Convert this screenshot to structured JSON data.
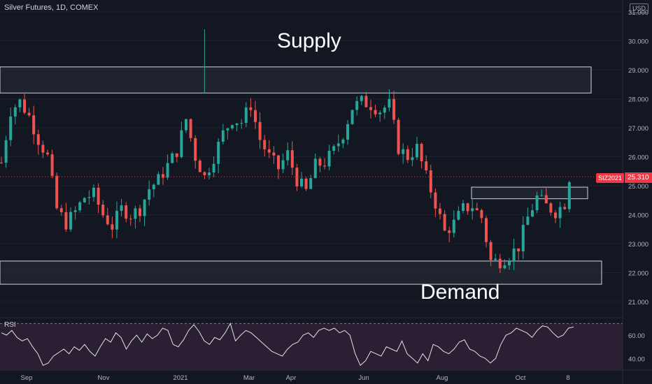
{
  "header": {
    "title": "Silver Futures, 1D, COMEX",
    "currency": "USD"
  },
  "badge": {
    "symbol": "SIZ2021",
    "price": "25.310"
  },
  "annotations": {
    "supply": "Supply",
    "demand": "Demand"
  },
  "colors": {
    "background": "#131722",
    "up": "#26a69a",
    "down": "#ef5350",
    "zone_fill": "#2a2e39",
    "zone_border": "#d1d4dc",
    "rsi_line": "#e0e3eb",
    "rsi_band": "#2a1f33",
    "price_badge": "#f23645"
  },
  "chart_data": [
    {
      "type": "candlestick",
      "title": "Silver Futures, 1D, COMEX",
      "xlabel": "",
      "ylabel": "USD",
      "ylim": [
        20.5,
        31.5
      ],
      "y_ticks": [
        "21.000",
        "22.000",
        "23.000",
        "24.000",
        "25.000",
        "26.000",
        "27.000",
        "28.000",
        "29.000",
        "30.000",
        "31.000"
      ],
      "x_ticks": [
        "Sep",
        "Nov",
        "2021",
        "Mar",
        "Apr",
        "Jun",
        "Aug",
        "Oct",
        "8"
      ],
      "last_price": 25.31,
      "close_path": [
        [
          0,
          25.8
        ],
        [
          2,
          27.6
        ],
        [
          4,
          27.9
        ],
        [
          6,
          27.4
        ],
        [
          8,
          26.6
        ],
        [
          10,
          26.0
        ],
        [
          12,
          24.2
        ],
        [
          14,
          23.7
        ],
        [
          16,
          24.1
        ],
        [
          18,
          24.6
        ],
        [
          20,
          24.7
        ],
        [
          22,
          24.0
        ],
        [
          24,
          23.6
        ],
        [
          26,
          24.2
        ],
        [
          28,
          24.0
        ],
        [
          30,
          24.2
        ],
        [
          32,
          24.9
        ],
        [
          34,
          25.2
        ],
        [
          36,
          25.7
        ],
        [
          38,
          26.2
        ],
        [
          40,
          27.3
        ],
        [
          42,
          26.0
        ],
        [
          44,
          25.3
        ],
        [
          46,
          26.0
        ],
        [
          48,
          26.8
        ],
        [
          50,
          27.3
        ],
        [
          52,
          27.2
        ],
        [
          54,
          27.8
        ],
        [
          56,
          26.6
        ],
        [
          58,
          26.0
        ],
        [
          60,
          25.6
        ],
        [
          62,
          26.1
        ],
        [
          64,
          25.2
        ],
        [
          66,
          24.8
        ],
        [
          68,
          25.7
        ],
        [
          70,
          25.8
        ],
        [
          72,
          26.2
        ],
        [
          74,
          26.8
        ],
        [
          76,
          27.7
        ],
        [
          78,
          27.9
        ],
        [
          80,
          27.8
        ],
        [
          82,
          27.6
        ],
        [
          84,
          27.8
        ],
        [
          86,
          26.3
        ],
        [
          88,
          26.0
        ],
        [
          90,
          26.3
        ],
        [
          92,
          25.3
        ],
        [
          94,
          24.4
        ],
        [
          96,
          23.4
        ],
        [
          98,
          23.7
        ],
        [
          100,
          24.2
        ],
        [
          102,
          24.3
        ],
        [
          104,
          23.9
        ],
        [
          106,
          22.4
        ],
        [
          108,
          22.4
        ],
        [
          110,
          22.6
        ],
        [
          112,
          22.9
        ],
        [
          114,
          23.9
        ],
        [
          116,
          24.6
        ],
        [
          118,
          24.3
        ],
        [
          120,
          24.1
        ],
        [
          122,
          24.4
        ],
        [
          123,
          25.3
        ]
      ],
      "spikes": [
        [
          44,
          30.4,
          28.2
        ]
      ],
      "zones": [
        {
          "label": "Supply",
          "y_low": 28.2,
          "y_high": 29.1,
          "x_end": 845
        },
        {
          "label": "Demand",
          "y_low": 21.6,
          "y_high": 22.4,
          "x_end": 860
        },
        {
          "label": "",
          "y_low": 24.55,
          "y_high": 24.95,
          "x_start": 674,
          "x_end": 840
        }
      ]
    },
    {
      "type": "line",
      "title": "RSI",
      "xlabel": "",
      "ylabel": "",
      "ylim": [
        30,
        72
      ],
      "y_ticks": [
        "40.00",
        "60.00"
      ],
      "band": [
        30,
        70
      ],
      "values": [
        62,
        60,
        64,
        58,
        55,
        57,
        50,
        44,
        34,
        36,
        42,
        45,
        48,
        44,
        50,
        47,
        52,
        46,
        42,
        50,
        57,
        54,
        62,
        58,
        48,
        55,
        60,
        54,
        61,
        57,
        60,
        66,
        64,
        52,
        50,
        56,
        64,
        69,
        63,
        55,
        52,
        58,
        56,
        62,
        70,
        55,
        60,
        64,
        62,
        58,
        54,
        50,
        46,
        44,
        42,
        48,
        52,
        54,
        60,
        62,
        58,
        64,
        66,
        64,
        66,
        62,
        64,
        60,
        44,
        34,
        38,
        46,
        44,
        42,
        50,
        48,
        46,
        55,
        44,
        40,
        36,
        44,
        38,
        52,
        50,
        46,
        44,
        48,
        54,
        56,
        48,
        46,
        42,
        40,
        36,
        40,
        52,
        60,
        62,
        66,
        64,
        62,
        58,
        64,
        68,
        67,
        62,
        58,
        60,
        66,
        67
      ]
    }
  ]
}
